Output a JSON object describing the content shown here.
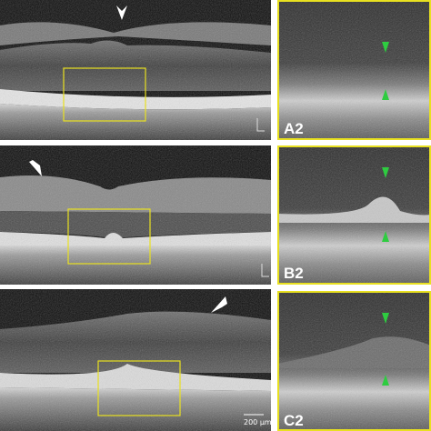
{
  "panels": [
    {
      "label": "A2"
    },
    {
      "label": "B2"
    },
    {
      "label": "C2"
    }
  ],
  "scale_bar": "200 µm"
}
